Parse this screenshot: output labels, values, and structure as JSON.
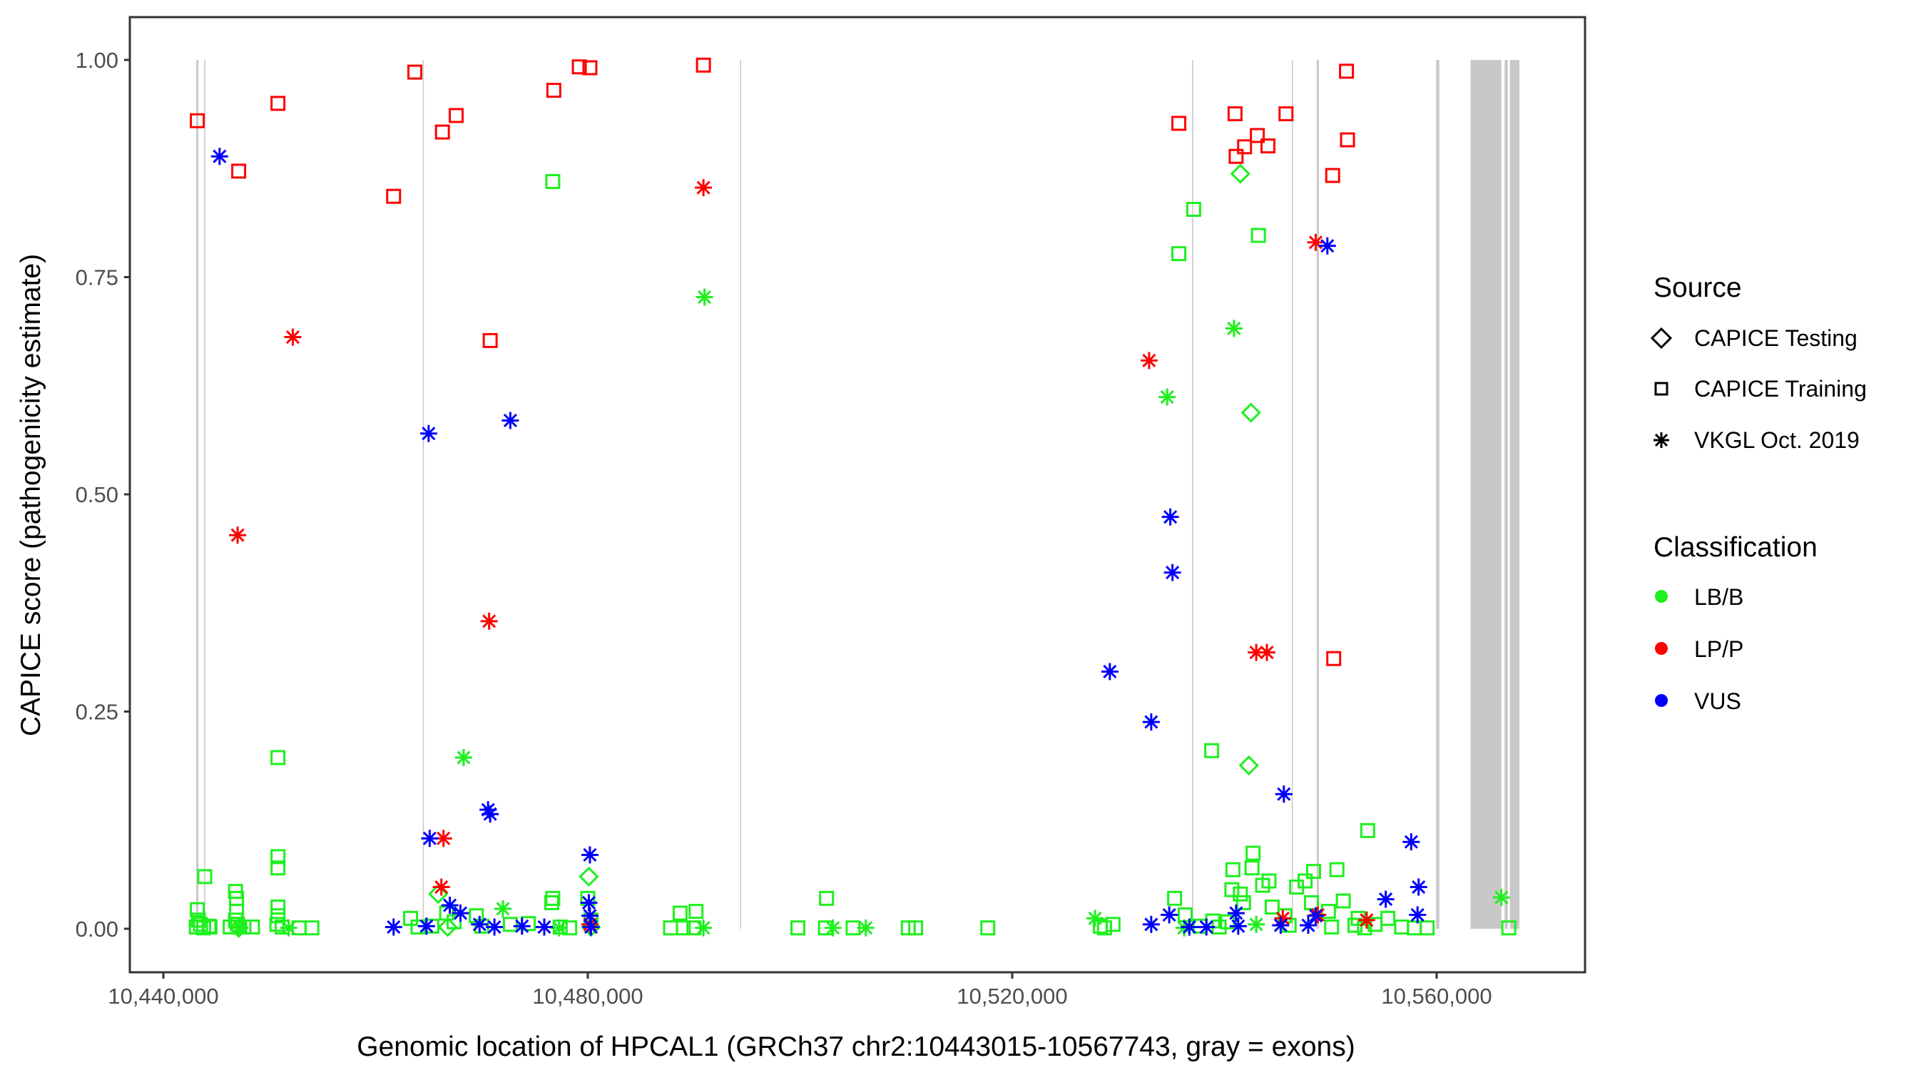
{
  "chart_data": {
    "type": "scatter",
    "title": "",
    "xlabel": "Genomic location of HPCAL1 (GRCh37 chr2:10443015-10567743, gray = exons)",
    "ylabel": "CAPICE score (pathogenicity estimate)",
    "xlim": [
      10435700,
      10572800
    ],
    "ylim": [
      -0.05,
      1.05
    ],
    "x_ticks": [
      10440000,
      10480000,
      10520000,
      10560000
    ],
    "x_tick_labels": [
      "10,440,000",
      "10,480,000",
      "10,520,000",
      "10,560,000"
    ],
    "y_ticks": [
      0,
      0.25,
      0.5,
      0.75,
      1.0
    ],
    "y_tick_labels": [
      "0.00",
      "0.25",
      "0.50",
      "0.75",
      "1.00"
    ],
    "grid": false,
    "legend_position": "right",
    "legend": {
      "source_title": "Source",
      "source_entries": [
        {
          "label": "CAPICE Testing",
          "shape": "diamond"
        },
        {
          "label": "CAPICE Training",
          "shape": "square"
        },
        {
          "label": "VKGL Oct. 2019",
          "shape": "asterisk"
        }
      ],
      "class_title": "Classification",
      "class_entries": [
        {
          "label": "LB/B",
          "color": "#00FF00"
        },
        {
          "label": "LP/P",
          "color": "#FF0000"
        },
        {
          "label": "VUS",
          "color": "#0000FF"
        }
      ]
    },
    "colors": {
      "LB/B": "#1EF01E",
      "LP/P": "#FF0000",
      "VUS": "#0000FF",
      "exon": "#C8C8C8"
    },
    "exons": [
      [
        10443100,
        10443300
      ],
      [
        10443850,
        10443950
      ],
      [
        10464450,
        10464550
      ],
      [
        10494350,
        10494450
      ],
      [
        10536950,
        10537050
      ],
      [
        10546350,
        10546450
      ],
      [
        10548700,
        10548900
      ],
      [
        10559950,
        10560250
      ],
      [
        10563200,
        10566100
      ],
      [
        10566400,
        10566700
      ],
      [
        10566900,
        10567800
      ]
    ],
    "series": [
      {
        "name": "CAPICE Training / LP/P",
        "source": "square",
        "class": "LP/P",
        "points": [
          [
            10443200,
            0.93
          ],
          [
            10447100,
            0.872
          ],
          [
            10450800,
            0.95
          ],
          [
            10461700,
            0.843
          ],
          [
            10463700,
            0.986
          ],
          [
            10466300,
            0.917
          ],
          [
            10467600,
            0.936
          ],
          [
            10470800,
            0.677
          ],
          [
            10476800,
            0.965
          ],
          [
            10479200,
            0.992
          ],
          [
            10480200,
            0.991
          ],
          [
            10490900,
            0.994
          ],
          [
            10535700,
            0.927
          ],
          [
            10541000,
            0.938
          ],
          [
            10541100,
            0.889
          ],
          [
            10541900,
            0.9
          ],
          [
            10543100,
            0.913
          ],
          [
            10544100,
            0.901
          ],
          [
            10545800,
            0.938
          ],
          [
            10550200,
            0.867
          ],
          [
            10551500,
            0.987
          ],
          [
            10551600,
            0.908
          ],
          [
            10550300,
            0.311
          ]
        ]
      },
      {
        "name": "VKGL / LP/P",
        "source": "asterisk",
        "class": "LP/P",
        "points": [
          [
            10447000,
            0.453
          ],
          [
            10452200,
            0.681
          ],
          [
            10466400,
            0.104
          ],
          [
            10466200,
            0.048
          ],
          [
            10470700,
            0.354
          ],
          [
            10490900,
            0.853
          ],
          [
            10532900,
            0.654
          ],
          [
            10543000,
            0.318
          ],
          [
            10544000,
            0.318
          ],
          [
            10548600,
            0.79
          ],
          [
            10545500,
            0.012
          ],
          [
            10548800,
            0.016
          ],
          [
            10553400,
            0.01
          ],
          [
            10480200,
            0.005
          ]
        ]
      },
      {
        "name": "VKGL / VUS",
        "source": "asterisk",
        "class": "VUS",
        "points": [
          [
            10445300,
            0.889
          ],
          [
            10465000,
            0.57
          ],
          [
            10472700,
            0.585
          ],
          [
            10470600,
            0.137
          ],
          [
            10470800,
            0.132
          ],
          [
            10465100,
            0.104
          ],
          [
            10480200,
            0.085
          ],
          [
            10461700,
            0.002
          ],
          [
            10464800,
            0.003
          ],
          [
            10467000,
            0.027
          ],
          [
            10468000,
            0.018
          ],
          [
            10469800,
            0.005
          ],
          [
            10471200,
            0.002
          ],
          [
            10473800,
            0.003
          ],
          [
            10475900,
            0.002
          ],
          [
            10480100,
            0.03
          ],
          [
            10480200,
            0.015
          ],
          [
            10480300,
            0.002
          ],
          [
            10529200,
            0.296
          ],
          [
            10533100,
            0.238
          ],
          [
            10534900,
            0.474
          ],
          [
            10535100,
            0.41
          ],
          [
            10545600,
            0.155
          ],
          [
            10549700,
            0.786
          ],
          [
            10557600,
            0.1
          ],
          [
            10558300,
            0.048
          ],
          [
            10555200,
            0.034
          ],
          [
            10558200,
            0.016
          ],
          [
            10533100,
            0.005
          ],
          [
            10534800,
            0.016
          ],
          [
            10536700,
            0.002
          ],
          [
            10538300,
            0.002
          ],
          [
            10541100,
            0.018
          ],
          [
            10541300,
            0.003
          ],
          [
            10545300,
            0.004
          ],
          [
            10548600,
            0.015
          ],
          [
            10547900,
            0.004
          ]
        ]
      },
      {
        "name": "VKGL / LB/B",
        "source": "asterisk",
        "class": "LB/B",
        "points": [
          [
            10468300,
            0.197
          ],
          [
            10472000,
            0.023
          ],
          [
            10491000,
            0.727
          ],
          [
            10477300,
            0.001
          ],
          [
            10490900,
            0.001
          ],
          [
            10503100,
            0.001
          ],
          [
            10506200,
            0.001
          ],
          [
            10527800,
            0.012
          ],
          [
            10534600,
            0.612
          ],
          [
            10540900,
            0.691
          ],
          [
            10566100,
            0.036
          ],
          [
            10447200,
            0.001
          ],
          [
            10451800,
            0.001
          ],
          [
            10536200,
            0.001
          ],
          [
            10543000,
            0.005
          ]
        ]
      },
      {
        "name": "CAPICE Testing / LB/B",
        "source": "diamond",
        "class": "LB/B",
        "points": [
          [
            10465900,
            0.04
          ],
          [
            10480100,
            0.06
          ],
          [
            10541500,
            0.869
          ],
          [
            10542500,
            0.594
          ],
          [
            10542300,
            0.188
          ],
          [
            10447100,
            0.001
          ],
          [
            10466800,
            0.002
          ],
          [
            10480300,
            0.002
          ]
        ]
      },
      {
        "name": "CAPICE Training / LB/B",
        "source": "square",
        "class": "LB/B",
        "points": [
          [
            10443200,
            0.022
          ],
          [
            10443300,
            0.01
          ],
          [
            10443500,
            0.005
          ],
          [
            10443100,
            0.002
          ],
          [
            10443800,
            0.001
          ],
          [
            10443900,
            0.06
          ],
          [
            10444300,
            0.003
          ],
          [
            10444400,
            0.002
          ],
          [
            10446800,
            0.043
          ],
          [
            10446900,
            0.035
          ],
          [
            10446900,
            0.02
          ],
          [
            10446800,
            0.01
          ],
          [
            10447000,
            0.005
          ],
          [
            10446300,
            0.002
          ],
          [
            10447600,
            0.002
          ],
          [
            10448400,
            0.002
          ],
          [
            10450800,
            0.197
          ],
          [
            10450800,
            0.083
          ],
          [
            10450800,
            0.07
          ],
          [
            10450800,
            0.025
          ],
          [
            10450800,
            0.015
          ],
          [
            10450700,
            0.005
          ],
          [
            10451200,
            0.002
          ],
          [
            10452800,
            0.001
          ],
          [
            10454000,
            0.001
          ],
          [
            10463300,
            0.012
          ],
          [
            10464000,
            0.002
          ],
          [
            10465300,
            0.003
          ],
          [
            10466700,
            0.018
          ],
          [
            10467400,
            0.008
          ],
          [
            10469500,
            0.015
          ],
          [
            10470000,
            0.003
          ],
          [
            10472700,
            0.005
          ],
          [
            10474400,
            0.006
          ],
          [
            10476600,
            0.03
          ],
          [
            10476700,
            0.035
          ],
          [
            10476700,
            0.86
          ],
          [
            10477400,
            0.002
          ],
          [
            10478300,
            0.001
          ],
          [
            10480000,
            0.035
          ],
          [
            10480300,
            0.01
          ],
          [
            10488700,
            0.018
          ],
          [
            10490200,
            0.02
          ],
          [
            10487800,
            0.001
          ],
          [
            10489000,
            0.001
          ],
          [
            10490000,
            0.001
          ],
          [
            10499800,
            0.001
          ],
          [
            10502500,
            0.035
          ],
          [
            10502400,
            0.001
          ],
          [
            10505000,
            0.001
          ],
          [
            10510200,
            0.001
          ],
          [
            10510900,
            0.001
          ],
          [
            10517700,
            0.001
          ],
          [
            10528300,
            0.003
          ],
          [
            10529500,
            0.005
          ],
          [
            10528700,
            0.001
          ],
          [
            10535300,
            0.035
          ],
          [
            10536300,
            0.016
          ],
          [
            10537700,
            0.003
          ],
          [
            10538900,
            0.009
          ],
          [
            10535700,
            0.777
          ],
          [
            10537100,
            0.828
          ],
          [
            10538800,
            0.205
          ],
          [
            10540800,
            0.068
          ],
          [
            10540700,
            0.045
          ],
          [
            10541500,
            0.04
          ],
          [
            10541800,
            0.03
          ],
          [
            10542600,
            0.07
          ],
          [
            10542700,
            0.087
          ],
          [
            10543200,
            0.798
          ],
          [
            10543600,
            0.05
          ],
          [
            10544200,
            0.055
          ],
          [
            10544500,
            0.025
          ],
          [
            10545700,
            0.015
          ],
          [
            10546800,
            0.048
          ],
          [
            10547600,
            0.055
          ],
          [
            10548400,
            0.066
          ],
          [
            10548200,
            0.03
          ],
          [
            10549800,
            0.02
          ],
          [
            10550600,
            0.068
          ],
          [
            10551200,
            0.032
          ],
          [
            10552600,
            0.012
          ],
          [
            10553500,
            0.113
          ],
          [
            10554200,
            0.005
          ],
          [
            10555400,
            0.012
          ],
          [
            10556700,
            0.002
          ],
          [
            10557900,
            0.001
          ],
          [
            10559100,
            0.001
          ],
          [
            10566800,
            0.001
          ],
          [
            10539500,
            0.002
          ],
          [
            10540300,
            0.008
          ],
          [
            10546100,
            0.004
          ],
          [
            10550100,
            0.002
          ],
          [
            10552300,
            0.004
          ],
          [
            10553200,
            0.001
          ]
        ]
      }
    ]
  }
}
